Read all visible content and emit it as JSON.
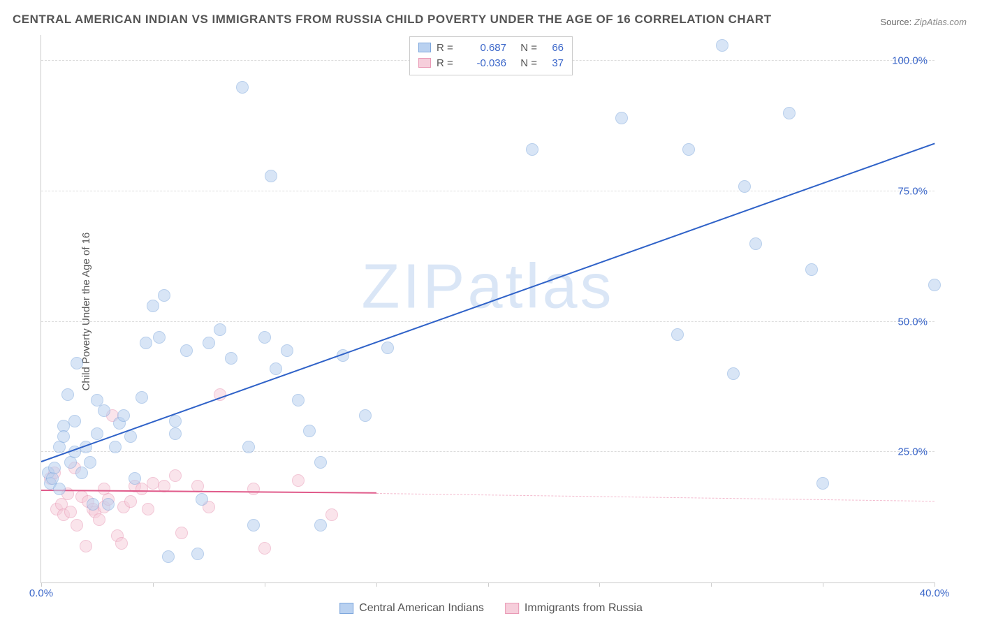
{
  "title": "CENTRAL AMERICAN INDIAN VS IMMIGRANTS FROM RUSSIA CHILD POVERTY UNDER THE AGE OF 16 CORRELATION CHART",
  "source_label": "Source:",
  "source_value": "ZipAtlas.com",
  "y_axis_label": "Child Poverty Under the Age of 16",
  "watermark_zip": "ZIP",
  "watermark_atlas": "atlas",
  "chart": {
    "type": "scatter",
    "xlim": [
      0,
      40
    ],
    "ylim": [
      0,
      105
    ],
    "x_ticks": [
      0,
      5,
      10,
      15,
      20,
      25,
      30,
      35,
      40
    ],
    "x_tick_labels": {
      "0": "0.0%",
      "40": "40.0%"
    },
    "y_ticks": [
      25,
      50,
      75,
      100
    ],
    "y_tick_labels": {
      "25": "25.0%",
      "50": "50.0%",
      "75": "75.0%",
      "100": "100.0%"
    },
    "background_color": "#ffffff",
    "grid_color": "#dcdcdc",
    "axis_color": "#cccccc",
    "tick_label_color": "#3a66c9",
    "marker_radius": 9,
    "marker_stroke_width": 1.5,
    "series": [
      {
        "name": "Central American Indians",
        "fill_color": "#b9d1f0",
        "stroke_color": "#7fa8dd",
        "fill_opacity": 0.55,
        "R": "0.687",
        "N": "66",
        "trend": {
          "x1": 0,
          "y1": 23,
          "x2": 40,
          "y2": 84,
          "color": "#2f62c8",
          "width": 2.5,
          "dash": false
        },
        "points": [
          [
            0.3,
            21
          ],
          [
            0.4,
            19
          ],
          [
            0.5,
            20
          ],
          [
            0.6,
            22
          ],
          [
            0.8,
            18
          ],
          [
            0.8,
            26
          ],
          [
            1.0,
            30
          ],
          [
            1.0,
            28
          ],
          [
            1.2,
            36
          ],
          [
            1.3,
            23
          ],
          [
            1.5,
            31
          ],
          [
            1.5,
            25
          ],
          [
            1.6,
            42
          ],
          [
            1.8,
            21
          ],
          [
            2.0,
            26
          ],
          [
            2.2,
            23
          ],
          [
            2.3,
            15
          ],
          [
            2.5,
            35
          ],
          [
            2.5,
            28.5
          ],
          [
            2.8,
            33
          ],
          [
            3.0,
            15
          ],
          [
            3.3,
            26
          ],
          [
            3.5,
            30.5
          ],
          [
            3.7,
            32
          ],
          [
            4.0,
            28
          ],
          [
            4.2,
            20
          ],
          [
            4.5,
            35.5
          ],
          [
            4.7,
            46
          ],
          [
            5.0,
            53
          ],
          [
            5.3,
            47
          ],
          [
            5.5,
            55
          ],
          [
            5.7,
            5
          ],
          [
            6.0,
            31
          ],
          [
            6.0,
            28.5
          ],
          [
            6.5,
            44.5
          ],
          [
            7.0,
            5.5
          ],
          [
            7.2,
            16
          ],
          [
            7.5,
            46
          ],
          [
            8.0,
            48.5
          ],
          [
            8.5,
            43
          ],
          [
            9.0,
            95
          ],
          [
            9.3,
            26
          ],
          [
            9.5,
            11
          ],
          [
            10.0,
            47
          ],
          [
            10.3,
            78
          ],
          [
            10.5,
            41
          ],
          [
            11.0,
            44.5
          ],
          [
            11.5,
            35
          ],
          [
            12.0,
            29
          ],
          [
            12.5,
            23
          ],
          [
            12.5,
            11
          ],
          [
            13.5,
            43.5
          ],
          [
            14.5,
            32
          ],
          [
            15.5,
            45
          ],
          [
            22.0,
            83
          ],
          [
            26.0,
            89
          ],
          [
            28.5,
            47.5
          ],
          [
            29.0,
            83
          ],
          [
            30.5,
            103
          ],
          [
            31.0,
            40
          ],
          [
            31.5,
            76
          ],
          [
            32.0,
            65
          ],
          [
            33.5,
            90
          ],
          [
            34.5,
            60
          ],
          [
            35.0,
            19
          ],
          [
            40.0,
            57
          ]
        ]
      },
      {
        "name": "Immigrants from Russia",
        "fill_color": "#f6cedb",
        "stroke_color": "#e99ab6",
        "fill_opacity": 0.55,
        "R": "-0.036",
        "N": "37",
        "trend_solid": {
          "x1": 0,
          "y1": 17.5,
          "x2": 15,
          "y2": 17.0,
          "color": "#e05a8a",
          "width": 2,
          "dash": false
        },
        "trend_dash": {
          "x1": 15,
          "y1": 17.0,
          "x2": 40,
          "y2": 15.5,
          "color": "#f3b9cd",
          "width": 1.5,
          "dash": true
        },
        "points": [
          [
            0.4,
            20
          ],
          [
            0.6,
            21
          ],
          [
            0.7,
            14
          ],
          [
            0.9,
            15
          ],
          [
            1.0,
            13
          ],
          [
            1.2,
            17
          ],
          [
            1.3,
            13.5
          ],
          [
            1.5,
            22
          ],
          [
            1.6,
            11
          ],
          [
            1.8,
            16.5
          ],
          [
            2.0,
            7
          ],
          [
            2.1,
            15.5
          ],
          [
            2.3,
            14
          ],
          [
            2.4,
            13.5
          ],
          [
            2.6,
            12
          ],
          [
            2.8,
            18
          ],
          [
            2.8,
            14.5
          ],
          [
            3.0,
            16
          ],
          [
            3.2,
            32
          ],
          [
            3.4,
            9
          ],
          [
            3.6,
            7.5
          ],
          [
            3.7,
            14.5
          ],
          [
            4.0,
            15.5
          ],
          [
            4.2,
            18.5
          ],
          [
            4.5,
            18
          ],
          [
            4.8,
            14
          ],
          [
            5.0,
            19
          ],
          [
            5.5,
            18.5
          ],
          [
            6.0,
            20.5
          ],
          [
            6.3,
            9.5
          ],
          [
            7.0,
            18.5
          ],
          [
            7.5,
            14.5
          ],
          [
            8.0,
            36
          ],
          [
            9.5,
            18
          ],
          [
            10.0,
            6.5
          ],
          [
            11.5,
            19.5
          ],
          [
            13.0,
            13
          ]
        ]
      }
    ]
  },
  "legend_bottom": {
    "series1_label": "Central American Indians",
    "series2_label": "Immigrants from Russia"
  },
  "legend_top": {
    "r_label": "R =",
    "n_label": "N ="
  }
}
